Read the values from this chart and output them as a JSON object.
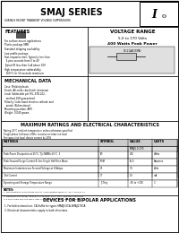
{
  "title": "SMAJ SERIES",
  "subtitle": "SURFACE MOUNT TRANSIENT VOLTAGE SUPPRESSORS",
  "voltage_range_title": "VOLTAGE RANGE",
  "voltage_range": "5.0 to 170 Volts",
  "power": "400 Watts Peak Power",
  "features_title": "FEATURES",
  "features": [
    "For surface mount applications",
    "Plastic package SMB",
    "Standard shipping availability",
    "Low profile package",
    "Fast response time: Typically less than",
    "  4 pico-seconds from 0 to 4V",
    "Typical IR less than 1uA above 10V",
    "High temperature solderability:",
    "  260°C for 10 seconds maximum"
  ],
  "mech_title": "MECHANICAL DATA",
  "mech": [
    "Case: Molded plastic",
    "Finish: All solder dip finish (minimum",
    "Lead: Solderable per MIL-STD-202,",
    "  method 208 guaranteed",
    "Polarity: Color band denotes cathode and",
    "  anode (Bidirectional)",
    "Mounting position: ANY",
    "Weight: 0.040 grams"
  ],
  "max_title": "MAXIMUM RATINGS AND ELECTRICAL CHARACTERISTICS",
  "max_sub1": "Rating 25°C ambient temperature unless otherwise specified",
  "max_sub2": "Single phase half wave, 60Hz, resistive or inductive load.",
  "max_sub3": "For capacitive load, derate current by 20%",
  "table_rows": [
    [
      "Peak Power Dissipation at 25°C, TJ=TAMB=25°C  3",
      "PD",
      "400",
      "Watts"
    ],
    [
      "Peak Forward Surge Current 8.3ms Single Half Sine Wave",
      "IFSM",
      "65.0",
      "Amperes"
    ],
    [
      "Maximum Instantaneous Forward Voltage at 25Amps",
      "VF",
      "3.5",
      "Volts"
    ],
    [
      "Test Current",
      "IT",
      "1.0",
      "mA"
    ],
    [
      "Operating and Storage Temperature Range",
      "TJ,Tstg",
      "-65 to +150",
      "°C"
    ]
  ],
  "notes_title": "NOTES:",
  "notes": [
    "1. Non-repetitive current pulse per Fig. 3 and derated above TA=25°C per Fig. 11",
    "2. Measured at IFSM per JEDEC/EIAJ Standards: RMX=max=kx/ERMS used 60Hz",
    "3. 8.3ms single half-sine wave, duty cycle = 4 pulses per minute maximum"
  ],
  "bipolar_title": "DEVICES FOR BIPOLAR APPLICATIONS",
  "bipolar": [
    "1. For bidirectional use, CA Suffix for types SMAJ5.0CA-SMAJ170CA",
    "2. Electrical characteristics apply in both directions"
  ]
}
